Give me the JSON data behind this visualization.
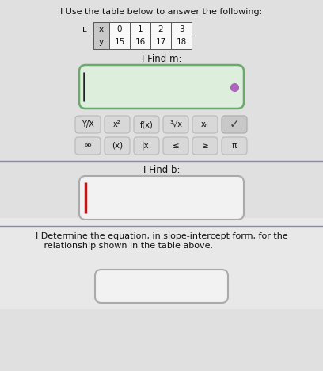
{
  "bg_color": "#cccccc",
  "white_panel_color": "#e8e8e8",
  "title_text": "Use the table below to answer the following:",
  "table_x_vals": [
    "x",
    "0",
    "1",
    "2",
    "3"
  ],
  "table_y_vals": [
    "y",
    "15",
    "16",
    "17",
    "18"
  ],
  "find_m_text": "Ι Find m:",
  "find_b_text": "Ι Find b:",
  "determine_text": "Ι Determine the equation, in slope-intercept form, for the\n   relationship shown in the table above.",
  "input_box_facecolor_m": "#dde8dd",
  "input_box_facecolor_b": "#f0f0f0",
  "input_box_facecolor_eq": "#f0f0f0",
  "input_box_edgecolor_m": "#5a9a5a",
  "input_box_edgecolor_b": "#aaaaaa",
  "input_box_edgecolor_eq": "#aaaaaa",
  "dot_color": "#b060c0",
  "cursor_color_m": "#2a2a2a",
  "cursor_color_b": "#cc1111",
  "font_color": "#111111",
  "section_line_color": "#8888bb",
  "key_facecolor": "#d8d8d8",
  "key_edgecolor": "#b8b8b8",
  "checkmark_facecolor": "#d0d0d0",
  "kbd_row1": [
    "Y/X",
    "x²",
    "f(x)",
    "³√x",
    "xₙ",
    "✓"
  ],
  "kbd_row2": [
    "⚮",
    "(x)",
    "|x|",
    "≤",
    "≥",
    "π"
  ],
  "title_icon": "Ι"
}
